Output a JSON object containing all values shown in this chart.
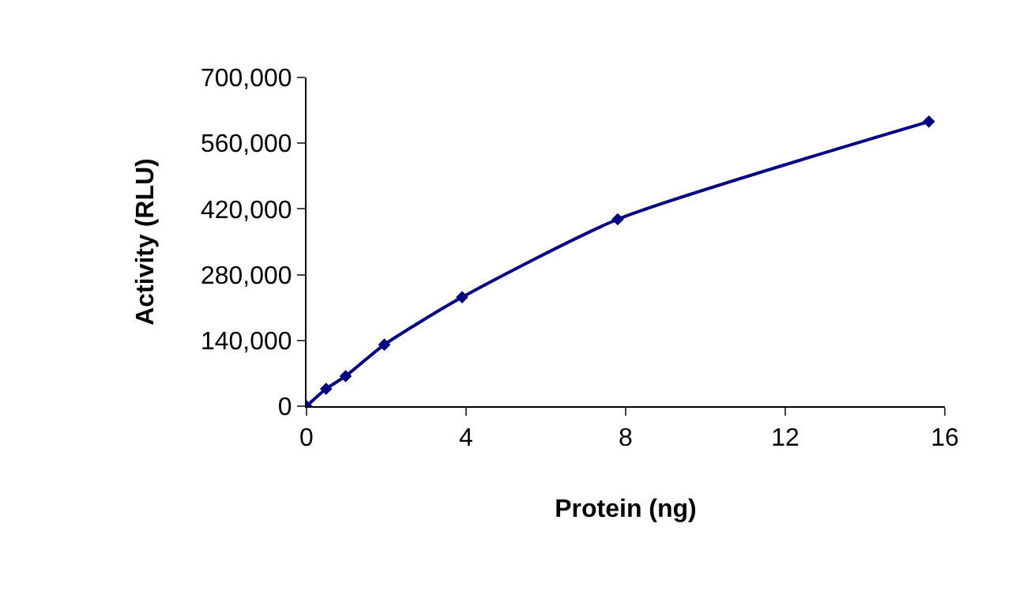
{
  "chart_data": {
    "type": "line",
    "xlabel": "Protein (ng)",
    "ylabel": "Activity (RLU)",
    "x": [
      0,
      0.49,
      0.98,
      1.95,
      3.9,
      7.8,
      15.6
    ],
    "series": [
      {
        "color": "#000080",
        "values": [
          0,
          37000,
          64000,
          131000,
          232000,
          398000,
          606000
        ]
      }
    ],
    "xlim": [
      0,
      16
    ],
    "xticks": [
      0,
      4,
      8,
      12,
      16
    ],
    "ylim": [
      0,
      700000
    ],
    "yticks": [
      0,
      {
        "value": 140000,
        "label": "140,000"
      },
      {
        "value": 280000,
        "label": "280,000"
      },
      {
        "value": 420000,
        "label": "420,000"
      },
      {
        "value": 560000,
        "label": "560,000"
      },
      {
        "value": 700000,
        "label": "700,000"
      }
    ],
    "grid": false,
    "marker": "diamond",
    "line_style": "solid"
  }
}
